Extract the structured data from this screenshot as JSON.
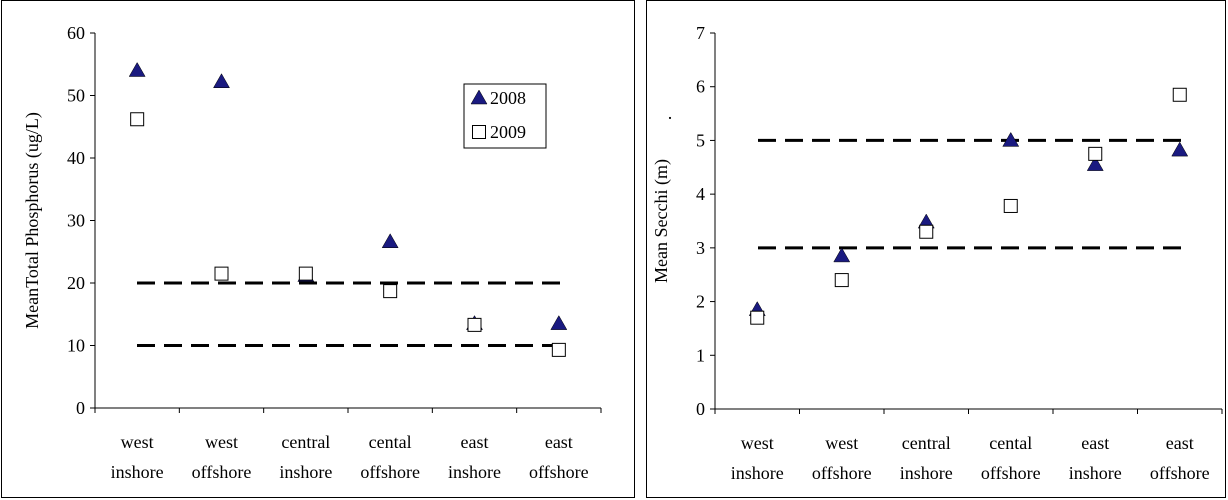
{
  "chart_data": [
    {
      "type": "scatter",
      "title": "",
      "xlabel": "",
      "ylabel": "MeanTotal Phosphorus (ug/L)",
      "ylim": [
        0,
        60
      ],
      "yticks": [
        "0",
        "10",
        "20",
        "30",
        "40",
        "50",
        "60"
      ],
      "categories": [
        [
          "west",
          "inshore"
        ],
        [
          "west",
          "offshore"
        ],
        [
          "central",
          "inshore"
        ],
        [
          "cental",
          "offshore"
        ],
        [
          "east",
          "inshore"
        ],
        [
          "east",
          "offshore"
        ]
      ],
      "series": [
        {
          "name": "2008",
          "marker": "filled-triangle",
          "color": "#1a1a80",
          "values": [
            54,
            52.2,
            21.2,
            26.6,
            13.5,
            13.5
          ]
        },
        {
          "name": "2009",
          "marker": "open-square",
          "color": "#000000",
          "values": [
            46.2,
            21.5,
            21.5,
            18.7,
            13.3,
            9.3
          ]
        }
      ],
      "reference_lines": [
        20,
        10
      ],
      "legend": "top-right",
      "grid": false
    },
    {
      "type": "scatter",
      "title": "",
      "xlabel": "",
      "ylabel": "Mean Secchi (m)",
      "ylim": [
        0,
        7
      ],
      "yticks": [
        "0",
        "1",
        "2",
        "3",
        "4",
        "5",
        "6",
        "7"
      ],
      "categories": [
        [
          "west",
          "inshore"
        ],
        [
          "west",
          "offshore"
        ],
        [
          "central",
          "inshore"
        ],
        [
          "cental",
          "offshore"
        ],
        [
          "east",
          "inshore"
        ],
        [
          "east",
          "offshore"
        ]
      ],
      "series": [
        {
          "name": "2008",
          "marker": "filled-triangle",
          "color": "#1a1a80",
          "values": [
            1.85,
            2.85,
            3.48,
            5.0,
            4.55,
            4.82
          ]
        },
        {
          "name": "2009",
          "marker": "open-square",
          "color": "#000000",
          "values": [
            1.7,
            2.4,
            3.3,
            3.78,
            4.75,
            5.85
          ]
        }
      ],
      "reference_lines": [
        5,
        3
      ],
      "legend": "none",
      "grid": false,
      "stray_mark": "."
    }
  ]
}
